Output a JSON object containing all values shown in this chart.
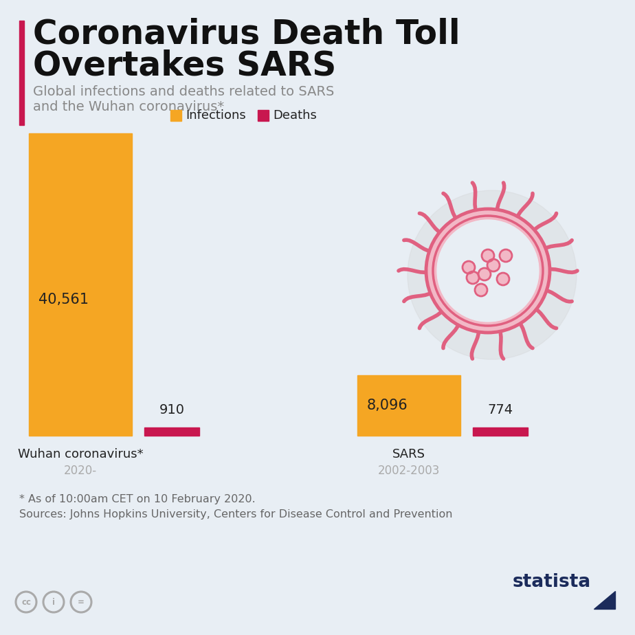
{
  "title_line1": "Coronavirus Death Toll",
  "title_line2": "Overtakes SARS",
  "subtitle": "Global infections and deaths related to SARS\nand the Wuhan coronavirus*",
  "legend_infections": "Infections",
  "legend_deaths": "Deaths",
  "groups": [
    "Wuhan coronavirus*",
    "SARS"
  ],
  "group_years": [
    "2020-",
    "2002-2003"
  ],
  "infections": [
    40561,
    8096
  ],
  "deaths": [
    910,
    774
  ],
  "infection_labels": [
    "40,561",
    "8,096"
  ],
  "death_labels": [
    "910",
    "774"
  ],
  "bar_color_infections": "#F5A623",
  "bar_color_deaths": "#C8174F",
  "background_color": "#E8EEF4",
  "title_color": "#111111",
  "subtitle_color": "#888888",
  "label_color": "#222222",
  "group_name_color": "#222222",
  "year_color": "#AAAAAA",
  "footnote_line1": "* As of 10:00am CET on 10 February 2020.",
  "footnote_line2": "Sources: Johns Hopkins University, Centers for Disease Control and Prevention",
  "accent_color": "#C8174F",
  "virus_color": "#E06080",
  "virus_fill": "#F2B8C6",
  "virus_bg": "#E8EEF4"
}
